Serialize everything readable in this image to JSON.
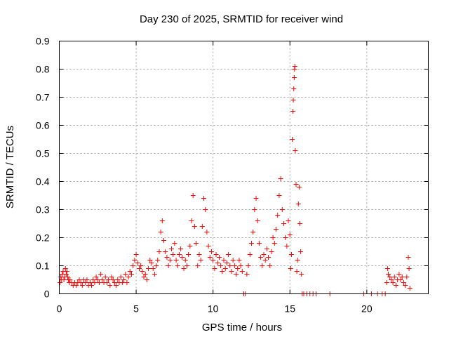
{
  "chart_data": {
    "type": "scatter",
    "title": "Day 230 of 2025, SRMTID for receiver wind",
    "xlabel": "GPS time / hours",
    "ylabel": "SRMTID / TECUs",
    "xlim": [
      0,
      24
    ],
    "ylim": [
      0,
      0.9
    ],
    "xticks": [
      0,
      5,
      10,
      15,
      20
    ],
    "yticks": [
      0,
      0.1,
      0.2,
      0.3,
      0.4,
      0.5,
      0.6,
      0.7,
      0.8,
      0.9
    ],
    "xtick_labels": [
      "0",
      "5",
      "10",
      "15",
      "20"
    ],
    "ytick_labels": [
      "0",
      "0.1",
      "0.2",
      "0.3",
      "0.4",
      "0.5",
      "0.6",
      "0.7",
      "0.8",
      "0.9"
    ],
    "grid": true,
    "marker": "+",
    "color": "#ff0000",
    "series": [
      {
        "name": "SRMTID",
        "points": [
          [
            0.05,
            0.04
          ],
          [
            0.1,
            0.06
          ],
          [
            0.15,
            0.05
          ],
          [
            0.2,
            0.07
          ],
          [
            0.25,
            0.08
          ],
          [
            0.3,
            0.05
          ],
          [
            0.35,
            0.06
          ],
          [
            0.4,
            0.09
          ],
          [
            0.45,
            0.07
          ],
          [
            0.5,
            0.08
          ],
          [
            0.55,
            0.06
          ],
          [
            0.6,
            0.05
          ],
          [
            0.65,
            0.04
          ],
          [
            0.7,
            0.05
          ],
          [
            0.8,
            0.04
          ],
          [
            0.9,
            0.03
          ],
          [
            1.0,
            0.04
          ],
          [
            1.1,
            0.03
          ],
          [
            1.2,
            0.04
          ],
          [
            1.3,
            0.05
          ],
          [
            1.4,
            0.04
          ],
          [
            1.5,
            0.03
          ],
          [
            1.6,
            0.05
          ],
          [
            1.7,
            0.04
          ],
          [
            1.8,
            0.05
          ],
          [
            1.9,
            0.03
          ],
          [
            2.0,
            0.04
          ],
          [
            2.1,
            0.03
          ],
          [
            2.2,
            0.05
          ],
          [
            2.3,
            0.04
          ],
          [
            2.4,
            0.06
          ],
          [
            2.5,
            0.05
          ],
          [
            2.6,
            0.04
          ],
          [
            2.7,
            0.07
          ],
          [
            2.8,
            0.05
          ],
          [
            2.9,
            0.04
          ],
          [
            3.0,
            0.06
          ],
          [
            3.1,
            0.04
          ],
          [
            3.2,
            0.05
          ],
          [
            3.3,
            0.03
          ],
          [
            3.4,
            0.06
          ],
          [
            3.5,
            0.05
          ],
          [
            3.6,
            0.04
          ],
          [
            3.7,
            0.03
          ],
          [
            3.8,
            0.05
          ],
          [
            3.9,
            0.04
          ],
          [
            4.0,
            0.06
          ],
          [
            4.1,
            0.04
          ],
          [
            4.2,
            0.05
          ],
          [
            4.3,
            0.07
          ],
          [
            4.4,
            0.04
          ],
          [
            4.5,
            0.06
          ],
          [
            4.6,
            0.08
          ],
          [
            4.7,
            0.07
          ],
          [
            4.8,
            0.1
          ],
          [
            4.9,
            0.12
          ],
          [
            5.0,
            0.14
          ],
          [
            5.1,
            0.11
          ],
          [
            5.2,
            0.09
          ],
          [
            5.3,
            0.1
          ],
          [
            5.4,
            0.08
          ],
          [
            5.5,
            0.06
          ],
          [
            5.6,
            0.07
          ],
          [
            5.7,
            0.05
          ],
          [
            5.8,
            0.09
          ],
          [
            5.9,
            0.12
          ],
          [
            6.0,
            0.11
          ],
          [
            6.1,
            0.09
          ],
          [
            6.2,
            0.07
          ],
          [
            6.3,
            0.1
          ],
          [
            6.4,
            0.12
          ],
          [
            6.5,
            0.15
          ],
          [
            6.6,
            0.22
          ],
          [
            6.7,
            0.26
          ],
          [
            6.8,
            0.19
          ],
          [
            6.9,
            0.15
          ],
          [
            7.0,
            0.13
          ],
          [
            7.1,
            0.1
          ],
          [
            7.2,
            0.12
          ],
          [
            7.3,
            0.16
          ],
          [
            7.4,
            0.14
          ],
          [
            7.5,
            0.18
          ],
          [
            7.6,
            0.12
          ],
          [
            7.7,
            0.1
          ],
          [
            7.8,
            0.14
          ],
          [
            7.9,
            0.16
          ],
          [
            8.0,
            0.13
          ],
          [
            8.1,
            0.09
          ],
          [
            8.2,
            0.12
          ],
          [
            8.3,
            0.1
          ],
          [
            8.4,
            0.14
          ],
          [
            8.5,
            0.17
          ],
          [
            8.6,
            0.26
          ],
          [
            8.7,
            0.35
          ],
          [
            8.8,
            0.24
          ],
          [
            8.9,
            0.18
          ],
          [
            9.0,
            0.1
          ],
          [
            9.1,
            0.14
          ],
          [
            9.2,
            0.12
          ],
          [
            9.3,
            0.24
          ],
          [
            9.4,
            0.34
          ],
          [
            9.5,
            0.3
          ],
          [
            9.6,
            0.22
          ],
          [
            9.7,
            0.17
          ],
          [
            9.8,
            0.13
          ],
          [
            9.9,
            0.15
          ],
          [
            10.0,
            0.12
          ],
          [
            10.1,
            0.09
          ],
          [
            10.2,
            0.14
          ],
          [
            10.3,
            0.11
          ],
          [
            10.4,
            0.13
          ],
          [
            10.5,
            0.1
          ],
          [
            10.6,
            0.08
          ],
          [
            10.7,
            0.12
          ],
          [
            10.8,
            0.09
          ],
          [
            10.9,
            0.11
          ],
          [
            11.0,
            0.14
          ],
          [
            11.1,
            0.1
          ],
          [
            11.2,
            0.08
          ],
          [
            11.3,
            0.12
          ],
          [
            11.4,
            0.1
          ],
          [
            11.5,
            0.07
          ],
          [
            11.6,
            0.09
          ],
          [
            11.7,
            0.12
          ],
          [
            11.8,
            0.1
          ],
          [
            11.9,
            0.08
          ],
          [
            12.0,
            0.0
          ],
          [
            12.1,
            0.0
          ],
          [
            12.2,
            0.07
          ],
          [
            12.3,
            0.1
          ],
          [
            12.4,
            0.14
          ],
          [
            12.5,
            0.18
          ],
          [
            12.6,
            0.22
          ],
          [
            12.7,
            0.3
          ],
          [
            12.8,
            0.34
          ],
          [
            12.9,
            0.26
          ],
          [
            13.0,
            0.18
          ],
          [
            13.1,
            0.13
          ],
          [
            13.2,
            0.1
          ],
          [
            13.3,
            0.14
          ],
          [
            13.4,
            0.12
          ],
          [
            13.5,
            0.16
          ],
          [
            13.6,
            0.13
          ],
          [
            13.7,
            0.1
          ],
          [
            13.8,
            0.15
          ],
          [
            13.9,
            0.2
          ],
          [
            14.0,
            0.18
          ],
          [
            14.1,
            0.23
          ],
          [
            14.2,
            0.28
          ],
          [
            14.3,
            0.35
          ],
          [
            14.4,
            0.41
          ],
          [
            14.5,
            0.3
          ],
          [
            14.6,
            0.25
          ],
          [
            14.7,
            0.2
          ],
          [
            14.8,
            0.17
          ],
          [
            14.9,
            0.26
          ],
          [
            15.0,
            0.21
          ],
          [
            15.05,
            0.09
          ],
          [
            15.1,
            0.14
          ],
          [
            15.15,
            0.55
          ],
          [
            15.2,
            0.65
          ],
          [
            15.22,
            0.69
          ],
          [
            15.25,
            0.73
          ],
          [
            15.28,
            0.77
          ],
          [
            15.3,
            0.8
          ],
          [
            15.32,
            0.81
          ],
          [
            15.35,
            0.51
          ],
          [
            15.4,
            0.39
          ],
          [
            15.45,
            0.08
          ],
          [
            15.5,
            0.12
          ],
          [
            15.55,
            0.32
          ],
          [
            15.6,
            0.38
          ],
          [
            15.65,
            0.25
          ],
          [
            15.7,
            0.15
          ],
          [
            15.75,
            0.07
          ],
          [
            15.8,
            0.0
          ],
          [
            15.9,
            0.0
          ],
          [
            16.1,
            0.0
          ],
          [
            16.3,
            0.0
          ],
          [
            16.5,
            0.0
          ],
          [
            16.7,
            0.0
          ],
          [
            17.6,
            0.0
          ],
          [
            19.8,
            0.0
          ],
          [
            20.3,
            0.0
          ],
          [
            20.7,
            0.0
          ],
          [
            21.0,
            0.0
          ],
          [
            21.2,
            0.0
          ],
          [
            21.3,
            0.04
          ],
          [
            21.35,
            0.09
          ],
          [
            21.4,
            0.07
          ],
          [
            21.5,
            0.06
          ],
          [
            21.6,
            0.05
          ],
          [
            21.7,
            0.04
          ],
          [
            21.8,
            0.06
          ],
          [
            21.9,
            0.03
          ],
          [
            22.0,
            0.05
          ],
          [
            22.1,
            0.07
          ],
          [
            22.2,
            0.05
          ],
          [
            22.3,
            0.06
          ],
          [
            22.4,
            0.04
          ],
          [
            22.5,
            0.03
          ],
          [
            22.6,
            0.06
          ],
          [
            22.7,
            0.13
          ],
          [
            22.75,
            0.09
          ],
          [
            22.8,
            0.02
          ]
        ]
      }
    ]
  }
}
